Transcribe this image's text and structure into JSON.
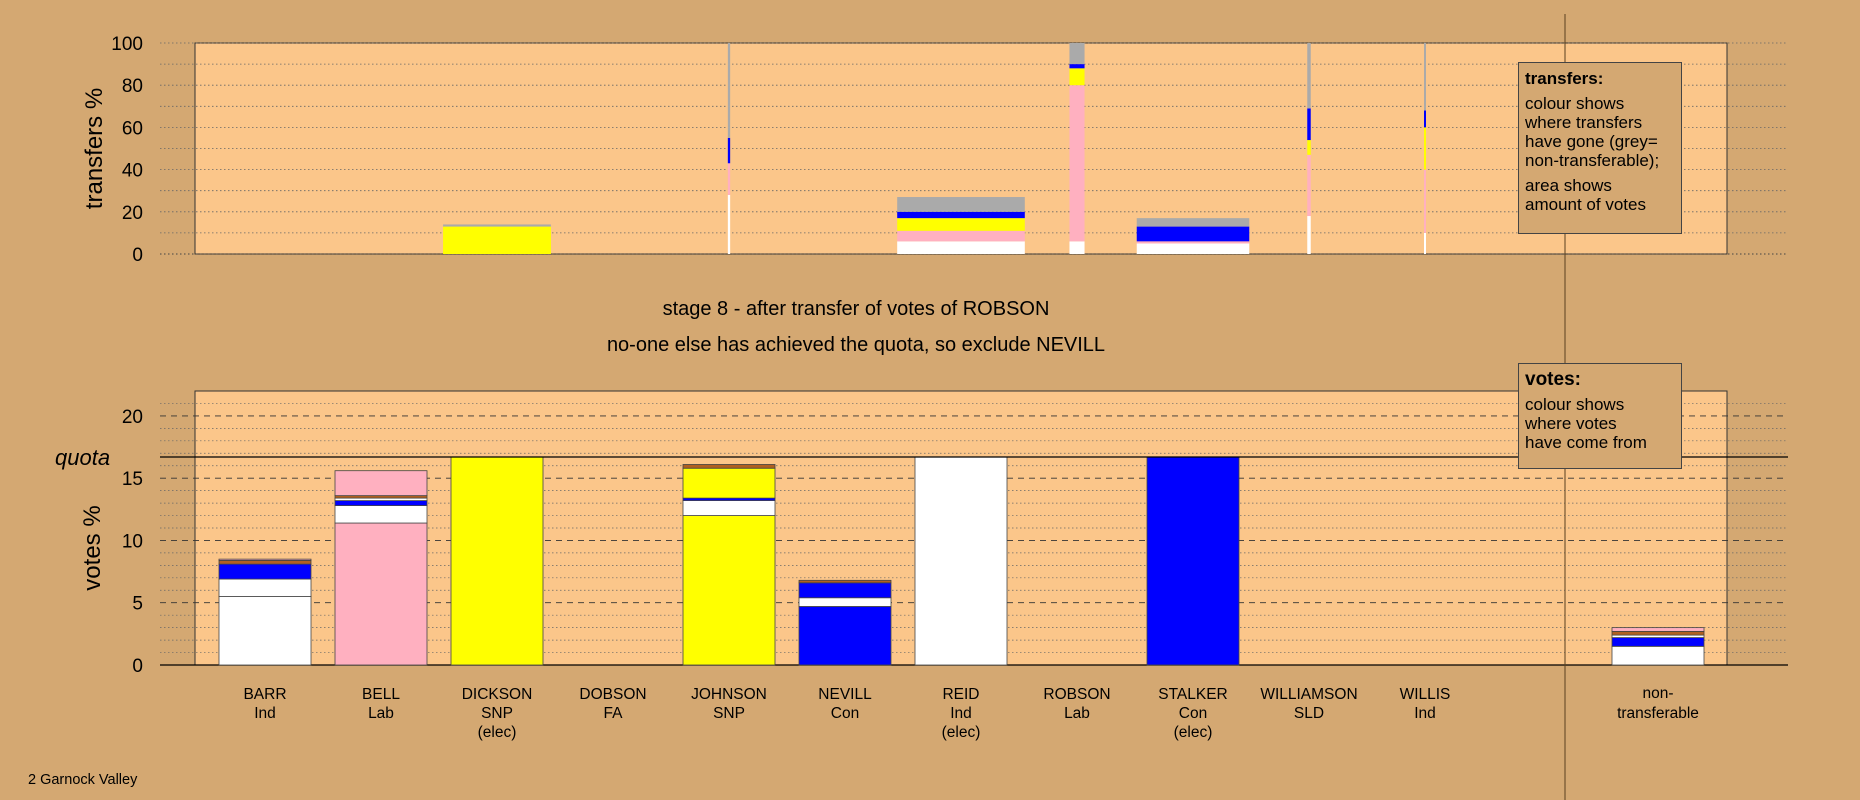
{
  "colors": {
    "background": "#d4a872",
    "plot_area": "#fbc68a",
    "Ind": "#ffffff",
    "Lab": "#ffb0c0",
    "SNP": "#ffff00",
    "Con": "#0000ff",
    "nontransferable": "#aaaaaa",
    "misc": "#b06020"
  },
  "stage_line1": "stage 8 - after transfer of votes of ROBSON",
  "stage_line2": "no-one else has achieved the quota, so exclude NEVILL",
  "footer": "2 Garnock Valley",
  "legend_transfers": {
    "title": "transfers:",
    "p1": "colour shows\nwhere transfers\nhave gone (grey=\nnon-transferable);",
    "p2": "area shows\namount of votes"
  },
  "legend_votes": {
    "title": "votes:",
    "p1": "colour shows\nwhere votes\nhave come from"
  },
  "chart_data": [
    {
      "type": "bar",
      "title": "",
      "ylabel": "transfers %",
      "ylim": [
        0,
        100
      ],
      "yticks": [
        "0",
        "20",
        "40",
        "60",
        "80",
        "100"
      ],
      "note": "stacked transfer bars; bar width proportional to amount of votes",
      "bars": [
        {
          "candidate": "DICKSON",
          "width": 0.93,
          "segments": [
            {
              "from": "SNP",
              "value": 13
            },
            {
              "from": "nontransferable",
              "value": 1
            }
          ]
        },
        {
          "candidate": "JOHNSON",
          "width": 0.02,
          "segments": [
            {
              "from": "Ind",
              "value": 28
            },
            {
              "from": "Lab",
              "value": 15
            },
            {
              "from": "Con",
              "value": 12
            },
            {
              "from": "nontransferable",
              "value": 45
            }
          ]
        },
        {
          "candidate": "REID",
          "width": 1.1,
          "segments": [
            {
              "from": "Ind",
              "value": 6
            },
            {
              "from": "Lab",
              "value": 5
            },
            {
              "from": "SNP",
              "value": 6
            },
            {
              "from": "Con",
              "value": 3
            },
            {
              "from": "nontransferable",
              "value": 7
            }
          ]
        },
        {
          "candidate": "ROBSON",
          "width": 0.13,
          "segments": [
            {
              "from": "Ind",
              "value": 6
            },
            {
              "from": "Lab",
              "value": 74
            },
            {
              "from": "SNP",
              "value": 8
            },
            {
              "from": "Con",
              "value": 2
            },
            {
              "from": "nontransferable",
              "value": 10
            }
          ]
        },
        {
          "candidate": "STALKER",
          "width": 0.97,
          "segments": [
            {
              "from": "Ind",
              "value": 5
            },
            {
              "from": "Lab",
              "value": 1
            },
            {
              "from": "Con",
              "value": 7
            },
            {
              "from": "nontransferable",
              "value": 4
            }
          ]
        },
        {
          "candidate": "WILLIAMSON",
          "width": 0.03,
          "segments": [
            {
              "from": "Ind",
              "value": 18
            },
            {
              "from": "Lab",
              "value": 29
            },
            {
              "from": "SNP",
              "value": 7
            },
            {
              "from": "Con",
              "value": 15
            },
            {
              "from": "nontransferable",
              "value": 31
            }
          ]
        },
        {
          "candidate": "WILLIS",
          "width": 0.01,
          "segments": [
            {
              "from": "Ind",
              "value": 10
            },
            {
              "from": "Lab",
              "value": 30
            },
            {
              "from": "SNP",
              "value": 20
            },
            {
              "from": "Con",
              "value": 8
            },
            {
              "from": "nontransferable",
              "value": 32
            }
          ]
        }
      ]
    },
    {
      "type": "bar",
      "title": "",
      "ylabel": "votes %",
      "ylim": [
        0,
        22
      ],
      "yticks": [
        "0",
        "5",
        "10",
        "15",
        "20"
      ],
      "quota": 16.7,
      "quota_label": "quota",
      "note": "stacked bars; colour shows where votes have come from",
      "candidates": [
        {
          "name": "BARR",
          "party": "Ind",
          "elec": "",
          "segments": [
            {
              "from": "Ind",
              "value": 5.5
            },
            {
              "from": "Ind",
              "value": 1.4
            },
            {
              "from": "Con",
              "value": 1.2
            },
            {
              "from": "misc",
              "value": 0.3
            },
            {
              "from": "Lab",
              "value": 0.1
            }
          ]
        },
        {
          "name": "BELL",
          "party": "Lab",
          "elec": "",
          "segments": [
            {
              "from": "Lab",
              "value": 11.4
            },
            {
              "from": "Ind",
              "value": 1.4
            },
            {
              "from": "Con",
              "value": 0.4
            },
            {
              "from": "Ind",
              "value": 0.2
            },
            {
              "from": "misc",
              "value": 0.2
            },
            {
              "from": "Lab",
              "value": 2.0
            }
          ]
        },
        {
          "name": "DICKSON",
          "party": "SNP",
          "elec": "(elec)",
          "segments": [
            {
              "from": "SNP",
              "value": 16.7
            }
          ]
        },
        {
          "name": "DOBSON",
          "party": "FA",
          "elec": "",
          "segments": []
        },
        {
          "name": "JOHNSON",
          "party": "SNP",
          "elec": "",
          "segments": [
            {
              "from": "SNP",
              "value": 12.0
            },
            {
              "from": "Ind",
              "value": 1.2
            },
            {
              "from": "Con",
              "value": 0.2
            },
            {
              "from": "SNP",
              "value": 2.4
            },
            {
              "from": "misc",
              "value": 0.3
            }
          ]
        },
        {
          "name": "NEVILL",
          "party": "Con",
          "elec": "",
          "segments": [
            {
              "from": "Con",
              "value": 4.7
            },
            {
              "from": "Ind",
              "value": 0.7
            },
            {
              "from": "Con",
              "value": 1.2
            },
            {
              "from": "misc",
              "value": 0.2
            }
          ]
        },
        {
          "name": "REID",
          "party": "Ind",
          "elec": "(elec)",
          "segments": [
            {
              "from": "Ind",
              "value": 16.7
            }
          ]
        },
        {
          "name": "ROBSON",
          "party": "Lab",
          "elec": "",
          "segments": []
        },
        {
          "name": "STALKER",
          "party": "Con",
          "elec": "(elec)",
          "segments": [
            {
              "from": "Con",
              "value": 16.7
            }
          ]
        },
        {
          "name": "WILLIAMSON",
          "party": "SLD",
          "elec": "",
          "segments": []
        },
        {
          "name": "WILLIS",
          "party": "Ind",
          "elec": "",
          "segments": []
        }
      ],
      "nontransferable": {
        "label1": "non-",
        "label2": "transferable",
        "segments": [
          {
            "from": "Ind",
            "value": 1.5
          },
          {
            "from": "Con",
            "value": 0.7
          },
          {
            "from": "Ind",
            "value": 0.2
          },
          {
            "from": "misc",
            "value": 0.3
          },
          {
            "from": "Lab",
            "value": 0.3
          }
        ]
      }
    }
  ]
}
